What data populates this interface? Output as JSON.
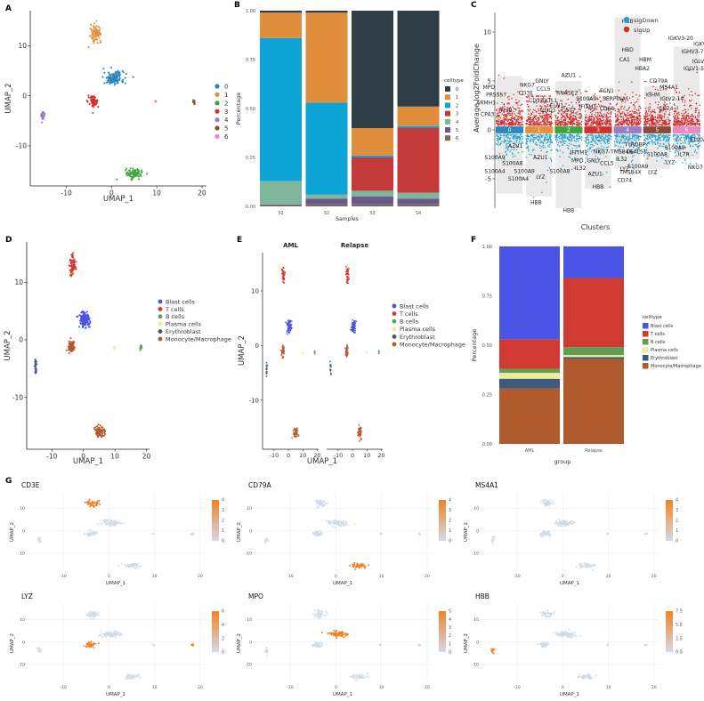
{
  "colors": {
    "cluster": [
      "#2E86C1",
      "#E6913A",
      "#3CA63C",
      "#D1312E",
      "#9B7CC4",
      "#8C4A3A",
      "#E889C2"
    ],
    "celltype": [
      "#2F3E46",
      "#E08E3C",
      "#0EA3D6",
      "#C43A3A",
      "#7FB59A",
      "#6A5A8C",
      "#7A6A5A"
    ],
    "cell": [
      "#4A54E6",
      "#D03A32",
      "#5E9E56",
      "#F0EB9A",
      "#3E5A7A",
      "#B05A2E"
    ],
    "sigDown": "#1FA0D2",
    "sigUp": "#D32B2B",
    "grad_low": "#d2dbe8",
    "grad_high": "#f28123"
  },
  "panels": {
    "A": {
      "label": "A",
      "xlabel": "UMAP_1",
      "ylabel": "UMAP_2",
      "xticks": [
        -10,
        0,
        10,
        20
      ],
      "yticks": [
        -10,
        0,
        10
      ],
      "xlim": [
        -18,
        21
      ],
      "ylim": [
        -18,
        17
      ],
      "legend": [
        "0",
        "1",
        "2",
        "3",
        "4",
        "5",
        "6"
      ]
    },
    "B": {
      "label": "B",
      "xlabel": "Samples",
      "ylabel": "Percentage",
      "legend_title": "celltype",
      "yticks": [
        "0.00",
        "0.25",
        "0.50",
        "0.75",
        "1.00"
      ]
    },
    "C": {
      "label": "C",
      "xlabel": "Clusters",
      "ylabel": "Average log2FoldChange",
      "yticks": [
        -5,
        0,
        5,
        10
      ],
      "ylim": [
        -8,
        12
      ],
      "legend": [
        "sigDown",
        "sigUp"
      ]
    },
    "D": {
      "label": "D",
      "xlabel": "UMAP_1",
      "ylabel": "UMAP_2",
      "xticks": [
        -10,
        0,
        10,
        20
      ],
      "yticks": [
        -10,
        0,
        10
      ],
      "legend": [
        "Blast cells",
        "T cells",
        "B cells",
        "Plasma cells",
        "Erythroblast",
        "Monocyte/Macrophage"
      ]
    },
    "E": {
      "label": "E",
      "xlabel": "UMAP_1",
      "ylabel": "UMAP_2",
      "facets": [
        "AML",
        "Relapse"
      ],
      "xticks": [
        -10,
        0,
        10,
        20
      ],
      "yticks": [
        -10,
        0,
        10
      ],
      "legend": [
        "Blast cells",
        "T cells",
        "B cells",
        "Plasma cells",
        "Erythroblast",
        "Monocyte/Macrophage"
      ]
    },
    "F": {
      "label": "F",
      "xlabel": "group",
      "ylabel": "Percentage",
      "legend_title": "celltype",
      "yticks": [
        "0.00",
        "0.25",
        "0.50",
        "0.75",
        "1.00"
      ],
      "legend": [
        "Blast cells",
        "T cells",
        "B cells",
        "Plasma cells",
        "Erythroblast",
        "Monocyte/Macrophage"
      ]
    },
    "G": {
      "label": "G",
      "xlabel": "UMAP_1",
      "ylabel": "UMAP_2",
      "xticks": [
        -10,
        0,
        10,
        20
      ],
      "yticks": [
        -10,
        0,
        10
      ]
    }
  },
  "chart_data": [
    {
      "panel": "A",
      "type": "scatter",
      "xlabel": "UMAP_1",
      "ylabel": "UMAP_2",
      "xlim": [
        -18,
        21
      ],
      "ylim": [
        -18,
        17
      ],
      "clusters": [
        {
          "name": "0",
          "cx": 0.5,
          "cy": 3.5,
          "sx": 2.2,
          "sy": 1.3,
          "n": 150
        },
        {
          "name": "1",
          "cx": -3.5,
          "cy": 12.5,
          "sx": 1.2,
          "sy": 1.6,
          "n": 90
        },
        {
          "name": "2",
          "cx": 5.0,
          "cy": -15.5,
          "sx": 1.8,
          "sy": 1.0,
          "n": 90
        },
        {
          "name": "3",
          "cx": -4.0,
          "cy": -1.2,
          "sx": 1.2,
          "sy": 1.1,
          "n": 70
        },
        {
          "name": "4",
          "cx": -15.2,
          "cy": -4.0,
          "sx": 0.4,
          "sy": 1.4,
          "n": 25
        },
        {
          "name": "5",
          "cx": 18.3,
          "cy": -1.3,
          "sx": 0.3,
          "sy": 0.4,
          "n": 12
        },
        {
          "name": "6",
          "cx": 9.8,
          "cy": -1.2,
          "sx": 0.2,
          "sy": 0.3,
          "n": 6
        }
      ]
    },
    {
      "panel": "B",
      "type": "bar",
      "categories": [
        "S1",
        "S2",
        "S3",
        "S4"
      ],
      "stack_order": [
        "6",
        "5",
        "4",
        "3",
        "2",
        "1",
        "0"
      ],
      "legend": [
        "0",
        "1",
        "2",
        "3",
        "4",
        "5",
        "6"
      ],
      "ylim": [
        0,
        1
      ],
      "series": [
        {
          "name": "0",
          "values": [
            0.01,
            0.01,
            0.6,
            0.49
          ]
        },
        {
          "name": "1",
          "values": [
            0.13,
            0.46,
            0.14,
            0.1
          ]
        },
        {
          "name": "2",
          "values": [
            0.73,
            0.47,
            0.01,
            0.01
          ]
        },
        {
          "name": "3",
          "values": [
            0.0,
            0.0,
            0.17,
            0.33
          ]
        },
        {
          "name": "4",
          "values": [
            0.12,
            0.02,
            0.03,
            0.03
          ]
        },
        {
          "name": "5",
          "values": [
            0.005,
            0.03,
            0.04,
            0.03
          ]
        },
        {
          "name": "6",
          "values": [
            0.005,
            0.01,
            0.01,
            0.01
          ]
        }
      ]
    },
    {
      "panel": "C",
      "type": "scatter",
      "categories": [
        "0",
        "1",
        "2",
        "3",
        "4",
        "5",
        "6"
      ],
      "ylim": [
        -8,
        12
      ],
      "bg_bars": [
        {
          "up": 5.5,
          "down": -6.5
        },
        {
          "up": 3.0,
          "down": -6.8
        },
        {
          "up": 5.0,
          "down": -8.0
        },
        {
          "up": 3.5,
          "down": -6.0
        },
        {
          "up": 11.5,
          "down": -4.0
        },
        {
          "up": 4.5,
          "down": -4.0
        },
        {
          "up": 8.5,
          "down": -3.0
        }
      ],
      "labels": [
        {
          "text": "MPO",
          "x": -0.7,
          "y": 4.2
        },
        {
          "text": "PRSS57",
          "x": -0.45,
          "y": 3.4
        },
        {
          "text": "ARMH1",
          "x": -0.8,
          "y": 2.6
        },
        {
          "text": "CPA3",
          "x": -0.75,
          "y": 1.4
        },
        {
          "text": "MYB",
          "x": -0.1,
          "y": 1.8
        },
        {
          "text": "NKG7",
          "x": 0.6,
          "y": 4.4
        },
        {
          "text": "CD3E",
          "x": 0.55,
          "y": 3.6
        },
        {
          "text": "GNLY",
          "x": 1.1,
          "y": 4.8
        },
        {
          "text": "CCL5",
          "x": 1.15,
          "y": 4.0
        },
        {
          "text": "CD52",
          "x": 0.9,
          "y": 2.8
        },
        {
          "text": "TKTL1",
          "x": 1.35,
          "y": 2.8
        },
        {
          "text": "CLIC3",
          "x": 1.3,
          "y": 1.8
        },
        {
          "text": "AZU1",
          "x": 2.0,
          "y": 5.4
        },
        {
          "text": "RNASE2",
          "x": 1.95,
          "y": 3.6
        },
        {
          "text": "ELN1",
          "x": 1.6,
          "y": 2.3
        },
        {
          "text": "CST7",
          "x": 2.0,
          "y": 1.8
        },
        {
          "text": "S100A9",
          "x": 2.6,
          "y": 3.0
        },
        {
          "text": "IFITM1",
          "x": 2.65,
          "y": 2.2
        },
        {
          "text": "FCN1",
          "x": 3.3,
          "y": 3.8
        },
        {
          "text": "SERPINA1",
          "x": 3.6,
          "y": 3.0
        },
        {
          "text": "CD68",
          "x": 3.3,
          "y": 2.0
        },
        {
          "text": "HBD",
          "x": 4.0,
          "y": 8.0
        },
        {
          "text": "CA1",
          "x": 3.9,
          "y": 7.0
        },
        {
          "text": "HBM",
          "x": 4.6,
          "y": 7.0
        },
        {
          "text": "HBA2",
          "x": 4.5,
          "y": 6.1
        },
        {
          "text": "CD79A",
          "x": 5.05,
          "y": 4.8
        },
        {
          "text": "IGHM",
          "x": 4.85,
          "y": 3.4
        },
        {
          "text": "MS4A1",
          "x": 5.4,
          "y": 4.2
        },
        {
          "text": "IGLV2-14",
          "x": 5.5,
          "y": 3.0
        },
        {
          "text": "CD74",
          "x": 5.3,
          "y": 2.0
        },
        {
          "text": "IGKV3-20",
          "x": 5.8,
          "y": 9.2
        },
        {
          "text": "IGKV1-5",
          "x": 6.6,
          "y": 8.6
        },
        {
          "text": "IGHV3-7",
          "x": 6.2,
          "y": 7.8
        },
        {
          "text": "IGLV1-47",
          "x": 6.6,
          "y": 6.8
        },
        {
          "text": "IGLV1-51",
          "x": 6.3,
          "y": 6.1
        },
        {
          "text": "HBB",
          "x": 4.0,
          "y": 10.9
        },
        {
          "text": "S100A9",
          "x": -0.5,
          "y": -3.0
        },
        {
          "text": "AZU1",
          "x": 0.2,
          "y": -1.8
        },
        {
          "text": "S100A8",
          "x": 0.1,
          "y": -3.6
        },
        {
          "text": "S100A4",
          "x": -0.5,
          "y": -4.4
        },
        {
          "text": "S100A9",
          "x": 0.5,
          "y": -4.4
        },
        {
          "text": "S100A4",
          "x": 0.3,
          "y": -5.2
        },
        {
          "text": "AZU1",
          "x": 1.05,
          "y": -3.0
        },
        {
          "text": "LYZ",
          "x": 1.05,
          "y": -5.0
        },
        {
          "text": "S100A8",
          "x": 1.7,
          "y": -4.4
        },
        {
          "text": "HBB",
          "x": 0.9,
          "y": -7.6
        },
        {
          "text": "IFITM1",
          "x": 2.35,
          "y": -2.5
        },
        {
          "text": "MPO",
          "x": 2.3,
          "y": -3.3
        },
        {
          "text": "IL32",
          "x": 2.4,
          "y": -4.1
        },
        {
          "text": "GNLY",
          "x": 2.85,
          "y": -3.3
        },
        {
          "text": "NKG7",
          "x": 3.1,
          "y": -2.4
        },
        {
          "text": "CCL5",
          "x": 3.3,
          "y": -3.6
        },
        {
          "text": "AZU1",
          "x": 2.9,
          "y": -4.7
        },
        {
          "text": "HBB",
          "x": 2.0,
          "y": -8.4
        },
        {
          "text": "HBB",
          "x": 3.0,
          "y": -6.0
        },
        {
          "text": "TMSB4X",
          "x": 3.8,
          "y": -2.4
        },
        {
          "text": "LGALS1",
          "x": 4.3,
          "y": -2.4
        },
        {
          "text": "IL32",
          "x": 3.8,
          "y": -3.2
        },
        {
          "text": "LYZ",
          "x": 3.9,
          "y": -4.2
        },
        {
          "text": "CD74",
          "x": 3.9,
          "y": -5.3
        },
        {
          "text": "TYROBP",
          "x": 4.25,
          "y": -1.7
        },
        {
          "text": "S100A9",
          "x": 4.35,
          "y": -3.9
        },
        {
          "text": "TMSB4X",
          "x": 4.1,
          "y": -4.5
        },
        {
          "text": "LYZ",
          "x": 4.85,
          "y": -4.5
        },
        {
          "text": "S100A8",
          "x": 5.0,
          "y": -2.7
        },
        {
          "text": "S100A8",
          "x": 5.6,
          "y": -2.0
        },
        {
          "text": "LYZ",
          "x": 5.45,
          "y": -3.5
        },
        {
          "text": "NKG7",
          "x": 6.3,
          "y": -4.0
        },
        {
          "text": "S100A9",
          "x": 6.45,
          "y": -1.2
        },
        {
          "text": "IL7R",
          "x": 5.9,
          "y": -2.7
        }
      ]
    },
    {
      "panel": "D",
      "type": "scatter",
      "xlabel": "UMAP_1",
      "ylabel": "UMAP_2",
      "xlim": [
        -18,
        21
      ],
      "ylim": [
        -19,
        17
      ],
      "clusters": [
        {
          "name": "Blast cells",
          "color_index": 0,
          "cx": 0.5,
          "cy": 3.5,
          "sx": 1.6,
          "sy": 1.3,
          "n": 130
        },
        {
          "name": "T cells",
          "color_index": 1,
          "cx": -3.5,
          "cy": 12.8,
          "sx": 1.0,
          "sy": 1.6,
          "n": 80
        },
        {
          "name": "B cells",
          "color_index": 2,
          "cx": 18.3,
          "cy": -1.3,
          "sx": 0.3,
          "sy": 0.4,
          "n": 10
        },
        {
          "name": "Plasma cells",
          "color_index": 3,
          "cx": 9.8,
          "cy": -1.3,
          "sx": 0.2,
          "sy": 0.3,
          "n": 6
        },
        {
          "name": "Erythroblast",
          "color_index": 4,
          "cx": -15.2,
          "cy": -4.5,
          "sx": 0.35,
          "sy": 1.5,
          "n": 25
        },
        {
          "name": "Monocyte/Macrophage",
          "color_index": 5,
          "cx": -4.0,
          "cy": -1.2,
          "sx": 1.0,
          "sy": 1.1,
          "n": 60
        },
        {
          "name": "Monocyte/Macrophage",
          "color_index": 5,
          "cx": 5.0,
          "cy": -16.0,
          "sx": 1.7,
          "sy": 1.0,
          "n": 80
        }
      ]
    },
    {
      "panel": "E",
      "type": "scatter",
      "facets": [
        "AML",
        "Relapse"
      ],
      "xlim": [
        -18,
        21
      ],
      "ylim": [
        -19,
        17
      ]
    },
    {
      "panel": "F",
      "type": "bar",
      "categories": [
        "AML",
        "Relapse"
      ],
      "ylim": [
        0,
        1
      ],
      "stack_order": [
        "Monocyte/Macrophage",
        "Erythroblast",
        "Plasma cells",
        "B cells",
        "T cells",
        "Blast cells"
      ],
      "series": [
        {
          "name": "Blast cells",
          "values": [
            0.47,
            0.16
          ]
        },
        {
          "name": "T cells",
          "values": [
            0.15,
            0.35
          ]
        },
        {
          "name": "B cells",
          "values": [
            0.02,
            0.04
          ]
        },
        {
          "name": "Plasma cells",
          "values": [
            0.03,
            0.01
          ]
        },
        {
          "name": "Erythroblast",
          "values": [
            0.05,
            0.01
          ]
        },
        {
          "name": "Monocyte/Macrophage",
          "values": [
            0.28,
            0.43
          ]
        }
      ]
    },
    {
      "panel": "G",
      "type": "scatter",
      "features": [
        {
          "name": "CD3E",
          "scale_ticks": [
            "0",
            "1",
            "2",
            "3",
            "4"
          ],
          "max": 4,
          "hot": [
            1
          ]
        },
        {
          "name": "CD79A",
          "scale_ticks": [
            "0",
            "1",
            "2",
            "3",
            "4"
          ],
          "max": 4,
          "hot": [
            2
          ]
        },
        {
          "name": "MS4A1",
          "scale_ticks": [
            "0",
            "1",
            "2",
            "3",
            "4"
          ],
          "max": 4,
          "hot": []
        },
        {
          "name": "LYZ",
          "scale_ticks": [
            "0",
            "2",
            "4",
            "6"
          ],
          "max": 6,
          "hot": [
            3,
            5
          ]
        },
        {
          "name": "MPO",
          "scale_ticks": [
            "0",
            "1",
            "2",
            "3",
            "4",
            "5"
          ],
          "max": 5,
          "hot": [
            0
          ]
        },
        {
          "name": "HBB",
          "scale_ticks": [
            "0.0",
            "2.5",
            "5.0",
            "7.5"
          ],
          "max": 7.5,
          "hot": [
            4
          ]
        }
      ]
    }
  ]
}
